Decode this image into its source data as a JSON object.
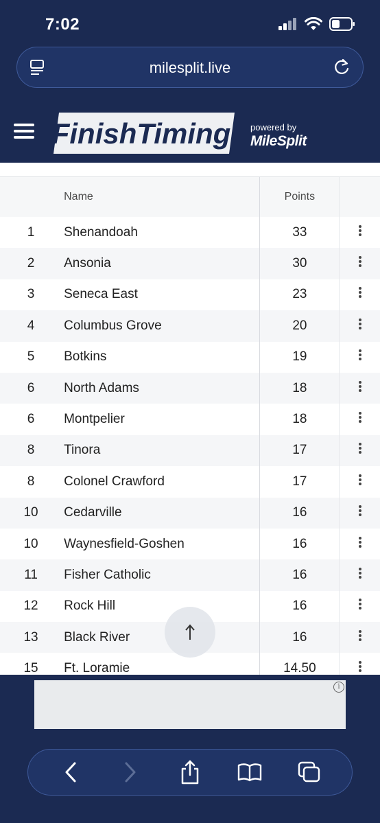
{
  "status": {
    "time": "7:02"
  },
  "browser": {
    "url": "milesplit.live"
  },
  "site": {
    "logo_text": "FinishTiming",
    "powered_by": "powered by",
    "partner": "MileSplit"
  },
  "table": {
    "headers": {
      "rank": "",
      "name": "Name",
      "points": "Points"
    },
    "rows": [
      {
        "rank": "1",
        "name": "Shenandoah",
        "points": "33"
      },
      {
        "rank": "2",
        "name": "Ansonia",
        "points": "30"
      },
      {
        "rank": "3",
        "name": "Seneca East",
        "points": "23"
      },
      {
        "rank": "4",
        "name": "Columbus Grove",
        "points": "20"
      },
      {
        "rank": "5",
        "name": "Botkins",
        "points": "19"
      },
      {
        "rank": "6",
        "name": "North Adams",
        "points": "18"
      },
      {
        "rank": "6",
        "name": "Montpelier",
        "points": "18"
      },
      {
        "rank": "8",
        "name": "Tinora",
        "points": "17"
      },
      {
        "rank": "8",
        "name": "Colonel Crawford",
        "points": "17"
      },
      {
        "rank": "10",
        "name": "Cedarville",
        "points": "16"
      },
      {
        "rank": "10",
        "name": "Waynesfield-Goshen",
        "points": "16"
      },
      {
        "rank": "11",
        "name": "Fisher Catholic",
        "points": "16"
      },
      {
        "rank": "12",
        "name": "Rock Hill",
        "points": "16"
      },
      {
        "rank": "13",
        "name": "Black River",
        "points": "16"
      },
      {
        "rank": "15",
        "name": "Ft. Loramie",
        "points": "14.50"
      }
    ]
  },
  "ad": {
    "info_glyph": "i"
  },
  "colors": {
    "header_bg": "#1b2a52",
    "row_alt": "#f5f6f8"
  }
}
